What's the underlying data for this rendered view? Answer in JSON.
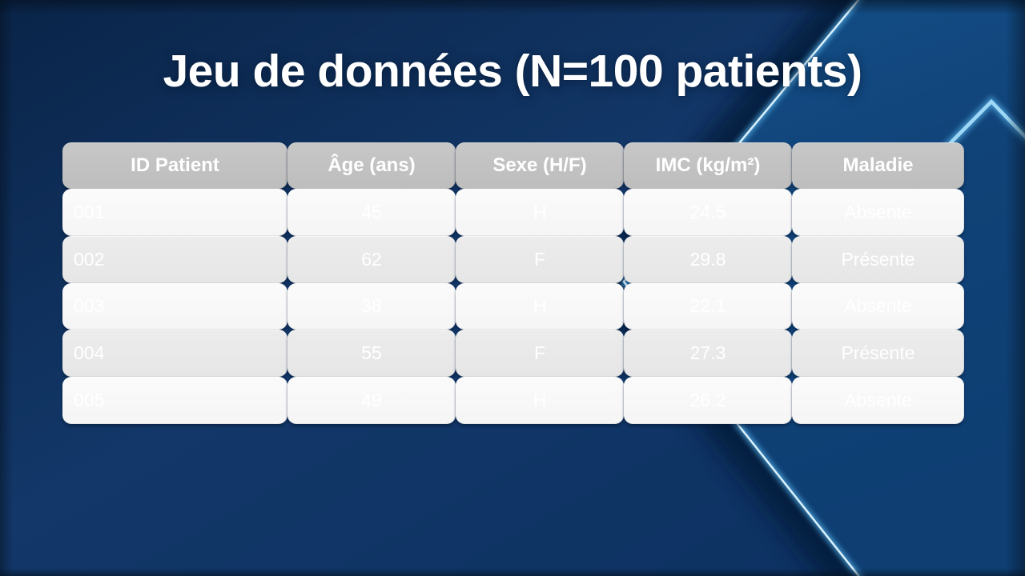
{
  "slide": {
    "title": "Jeu de données (N=100 patients)"
  },
  "table": {
    "columns": [
      "ID Patient",
      "Âge (ans)",
      "Sexe (H/F)",
      "IMC (kg/m²)",
      "Maladie"
    ],
    "rows": [
      [
        "001",
        "45",
        "H",
        "24.5",
        "Absente"
      ],
      [
        "002",
        "62",
        "F",
        "29.8",
        "Présente"
      ],
      [
        "003",
        "38",
        "H",
        "22.1",
        "Absente"
      ],
      [
        "004",
        "55",
        "F",
        "27.3",
        "Présente"
      ],
      [
        "005",
        "49",
        "H",
        "26.2",
        "Absente"
      ]
    ]
  },
  "chart_data": {
    "type": "table",
    "title": "Jeu de données (N=100 patients)",
    "columns": [
      "ID Patient",
      "Âge (ans)",
      "Sexe (H/F)",
      "IMC (kg/m²)",
      "Maladie"
    ],
    "rows": [
      [
        "001",
        "45",
        "H",
        "24.5",
        "Absente"
      ],
      [
        "002",
        "62",
        "F",
        "29.8",
        "Présente"
      ],
      [
        "003",
        "38",
        "H",
        "22.1",
        "Absente"
      ],
      [
        "004",
        "55",
        "F",
        "27.3",
        "Présente"
      ],
      [
        "005",
        "49",
        "H",
        "26.2",
        "Absente"
      ]
    ]
  },
  "colors": {
    "background_navy": "#123768",
    "background_blue": "#104277",
    "edge_dark": "#0a2448",
    "glow_line": "#d9f1fd",
    "glow_halo": "#4fa8e0",
    "chevron": "#9fd8f6",
    "header_gray": "#c2c2c2",
    "row_light": "#fafafa",
    "row_gray": "#e9e9e9",
    "text_white": "#ffffff"
  }
}
